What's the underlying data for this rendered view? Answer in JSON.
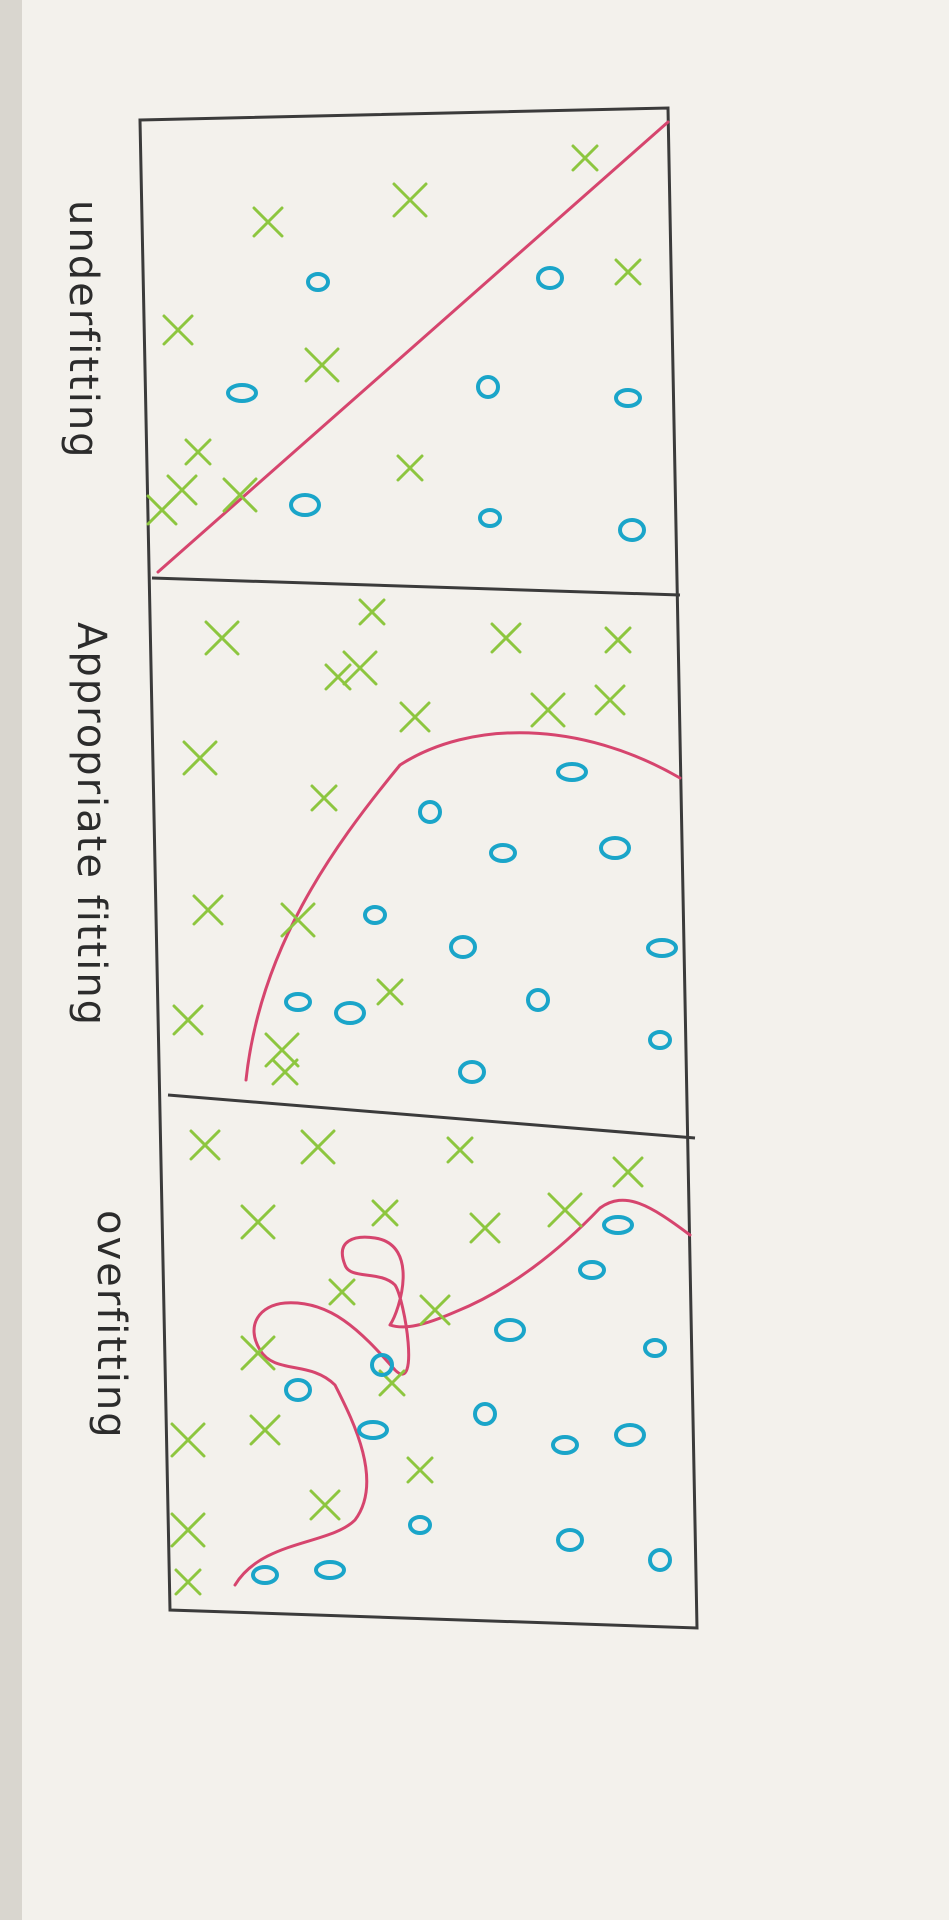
{
  "panels": [
    {
      "label": "underfitting"
    },
    {
      "label": "Appropriate fitting"
    },
    {
      "label": "overfitting"
    }
  ],
  "colors": {
    "paper": "#f3f1ec",
    "outline": "#3b3b3b",
    "x_mark": "#8dc63f",
    "o_mark": "#1aa5c9",
    "boundary": "#d6456e"
  },
  "marks": {
    "x_symbol": "x",
    "o_symbol": "o"
  }
}
